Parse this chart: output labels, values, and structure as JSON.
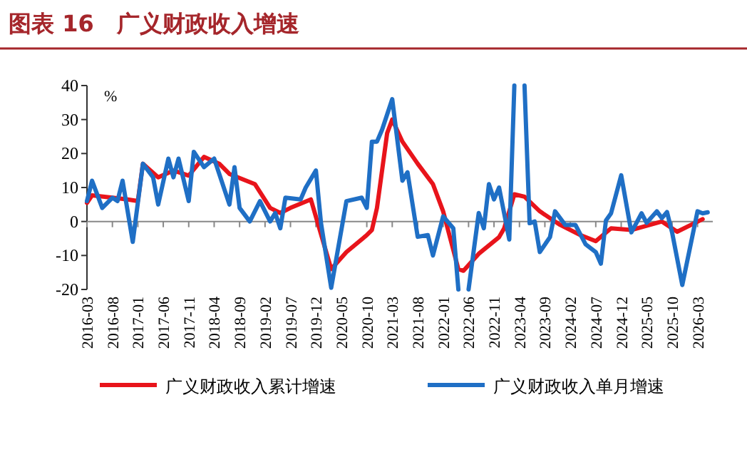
{
  "chart_data": {
    "type": "line",
    "title": "图表 16　广义财政收入增速",
    "ylabel": "%",
    "xlim": [
      "2016-03",
      "2026-06"
    ],
    "xticks": [
      "2016-03",
      "2016-08",
      "2017-01",
      "2017-06",
      "2017-11",
      "2018-04",
      "2018-09",
      "2019-02",
      "2019-07",
      "2019-12",
      "2020-05",
      "2020-10",
      "2021-03",
      "2021-08",
      "2022-01",
      "2022-06",
      "2022-11",
      "2023-04",
      "2023-09",
      "2024-02",
      "2024-07",
      "2024-12",
      "2025-05",
      "2025-10",
      "2026-03"
    ],
    "ylim": [
      -20,
      40
    ],
    "yticks": [
      -20,
      -10,
      0,
      10,
      20,
      30,
      40
    ],
    "legend": "bottom",
    "ref_lines": [
      {
        "axis": "y",
        "value": 0,
        "color": "#888888",
        "line_style": "solid"
      }
    ],
    "grid": false,
    "marker": "none",
    "line_style": "solid",
    "series": [
      {
        "name": "广义财政收入累计增速",
        "color": "#e8141b",
        "x": [
          "2016-03",
          "2016-04",
          "2016-08",
          "2016-11",
          "2017-01",
          "2017-02",
          "2017-05",
          "2017-08",
          "2017-11",
          "2018-02",
          "2018-05",
          "2018-07",
          "2018-12",
          "2019-03",
          "2019-05",
          "2019-07",
          "2019-11",
          "2020-03",
          "2020-06",
          "2020-10",
          "2020-11",
          "2020-12",
          "2021-02",
          "2021-03",
          "2021-05",
          "2021-08",
          "2021-11",
          "2022-01",
          "2022-04",
          "2022-05",
          "2022-08",
          "2022-12",
          "2023-01",
          "2023-03",
          "2023-05",
          "2023-08",
          "2023-12",
          "2024-04",
          "2024-07",
          "2024-10",
          "2025-02",
          "2025-08",
          "2025-11",
          "2026-04"
        ],
        "values": [
          5.5,
          7.7,
          7,
          6.5,
          6,
          17,
          13,
          15,
          13.5,
          19,
          17,
          14,
          11,
          4,
          2.5,
          4,
          6.5,
          -14,
          -9,
          -4,
          -2.5,
          4,
          26,
          30,
          23.5,
          17,
          11,
          3,
          -14,
          -14.5,
          -9.5,
          -4.6,
          -2,
          8,
          7.3,
          3,
          -1,
          -4,
          -5.8,
          -2,
          -2.5,
          0,
          -3,
          0.7
        ]
      },
      {
        "name": "广义财政收入单月增速",
        "color": "#1f6fc5",
        "x": [
          "2016-03",
          "2016-04",
          "2016-06",
          "2016-08",
          "2016-09",
          "2016-10",
          "2016-12",
          "2017-02",
          "2017-04",
          "2017-05",
          "2017-07",
          "2017-08",
          "2017-09",
          "2017-11",
          "2017-12",
          "2018-02",
          "2018-04",
          "2018-07",
          "2018-08",
          "2018-09",
          "2018-11",
          "2019-01",
          "2019-03",
          "2019-04",
          "2019-05",
          "2019-06",
          "2019-09",
          "2019-10",
          "2019-12",
          "2020-01",
          "2020-03",
          "2020-06",
          "2020-09",
          "2020-10",
          "2020-11",
          "2020-12",
          "2021-01",
          "2021-03",
          "2021-05",
          "2021-06",
          "2021-08",
          "2021-10",
          "2021-11",
          "2022-01",
          "2022-03",
          "2022-04",
          "2022-05",
          "2022-06",
          "2022-08",
          "2022-09",
          "2022-10",
          "2022-11",
          "2022-12",
          "2023-02",
          "2023-03",
          "2023-04",
          "2023-05",
          "2023-06",
          "2023-07",
          "2023-08",
          "2023-10",
          "2023-11",
          "2024-01",
          "2024-03",
          "2024-05",
          "2024-07",
          "2024-08",
          "2024-09",
          "2024-10",
          "2024-12",
          "2025-02",
          "2025-03",
          "2025-04",
          "2025-05",
          "2025-07",
          "2025-08",
          "2025-09",
          "2025-10",
          "2025-12",
          "2026-03",
          "2026-04",
          "2026-05"
        ],
        "values": [
          6,
          12,
          4,
          7,
          6,
          12,
          -6,
          17,
          13,
          5,
          18.5,
          13,
          18.5,
          6,
          20.5,
          16,
          18.5,
          5,
          16,
          4,
          0,
          6,
          0,
          2.5,
          -2,
          7,
          6.5,
          10,
          15,
          -0.5,
          -19.5,
          6,
          7,
          4,
          23.5,
          23.5,
          27,
          36,
          12,
          14.5,
          -4.5,
          -4,
          -10,
          1.5,
          -2,
          -20,
          null,
          -20,
          2.5,
          -2,
          11,
          6.5,
          10,
          -5.3,
          40,
          null,
          40,
          -0.5,
          0,
          -9,
          -4.6,
          3,
          -1,
          -1,
          -6.7,
          -9,
          -12.4,
          0.3,
          2.4,
          13.6,
          -3.2,
          -0.4,
          2.4,
          -0.4,
          3,
          1,
          2.8,
          -3.2,
          -18.7,
          3,
          2.4,
          2.7
        ]
      }
    ]
  }
}
